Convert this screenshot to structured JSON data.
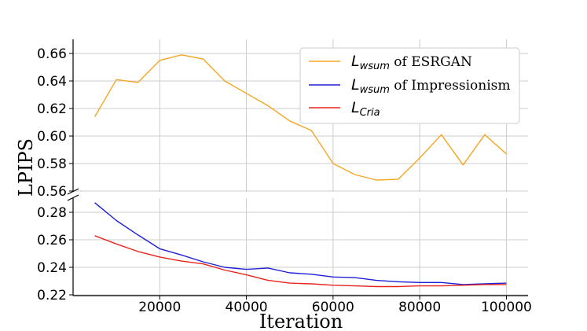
{
  "chart_data": {
    "type": "line",
    "xlabel": "Iteration",
    "ylabel": "LPIPS",
    "broken_y_axis": true,
    "grid": true,
    "legend_position": "top-right",
    "x_ticks": [
      20000,
      40000,
      60000,
      80000,
      100000
    ],
    "upper_panel": {
      "ylim": [
        0.56,
        0.67
      ],
      "y_ticks": [
        "0.56",
        "0.58",
        "0.60",
        "0.62",
        "0.64",
        "0.66"
      ]
    },
    "lower_panel": {
      "ylim": [
        0.22,
        0.29
      ],
      "y_ticks": [
        "0.22",
        "0.24",
        "0.26",
        "0.28"
      ]
    },
    "series": [
      {
        "key": "esrgan",
        "legend_main": "L",
        "legend_sub": "wsum",
        "legend_suffix": " of ESRGAN",
        "color": "#f5a623",
        "panel": "upper",
        "x": [
          5000,
          10000,
          15000,
          20000,
          25000,
          30000,
          35000,
          40000,
          45000,
          50000,
          55000,
          60000,
          65000,
          70000,
          75000,
          80000,
          85000,
          90000,
          95000,
          100000
        ],
        "values": [
          0.614,
          0.641,
          0.639,
          0.655,
          0.659,
          0.656,
          0.64,
          0.631,
          0.622,
          0.611,
          0.604,
          0.58,
          0.572,
          0.568,
          0.5685,
          0.584,
          0.601,
          0.579,
          0.601,
          0.587
        ]
      },
      {
        "key": "impressionism",
        "legend_main": "L",
        "legend_sub": "wsum",
        "legend_suffix": " of Impressionism",
        "color": "#1f1fd6",
        "panel": "lower",
        "x": [
          5000,
          10000,
          15000,
          20000,
          25000,
          30000,
          35000,
          40000,
          45000,
          50000,
          55000,
          60000,
          65000,
          70000,
          75000,
          80000,
          85000,
          90000,
          95000,
          100000
        ],
        "values": [
          0.287,
          0.274,
          0.2635,
          0.2535,
          0.249,
          0.244,
          0.24,
          0.2385,
          0.2395,
          0.236,
          0.235,
          0.233,
          0.2325,
          0.2305,
          0.2295,
          0.229,
          0.229,
          0.2275,
          0.228,
          0.2285
        ]
      },
      {
        "key": "cria",
        "legend_main": "L",
        "legend_sub": "Cria",
        "legend_suffix": "",
        "color": "#e8241c",
        "panel": "lower",
        "x": [
          5000,
          10000,
          15000,
          20000,
          25000,
          30000,
          35000,
          40000,
          45000,
          50000,
          55000,
          60000,
          65000,
          70000,
          75000,
          80000,
          85000,
          90000,
          95000,
          100000
        ],
        "values": [
          0.263,
          0.257,
          0.2515,
          0.2475,
          0.2445,
          0.2425,
          0.238,
          0.2345,
          0.2305,
          0.2285,
          0.228,
          0.227,
          0.2265,
          0.226,
          0.226,
          0.2265,
          0.2265,
          0.227,
          0.2275,
          0.2275
        ]
      }
    ]
  }
}
